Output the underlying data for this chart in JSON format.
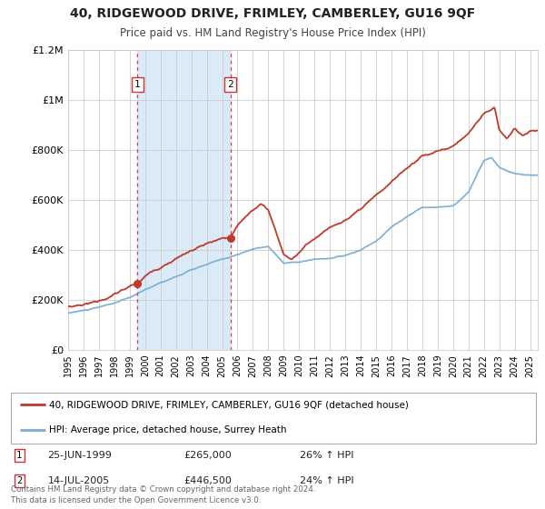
{
  "title": "40, RIDGEWOOD DRIVE, FRIMLEY, CAMBERLEY, GU16 9QF",
  "subtitle": "Price paid vs. HM Land Registry's House Price Index (HPI)",
  "sale1_date": 1999.49,
  "sale1_price": 265000,
  "sale1_label": "25-JUN-1999",
  "sale1_pct": "26%",
  "sale2_date": 2005.54,
  "sale2_price": 446500,
  "sale2_label": "14-JUL-2005",
  "sale2_pct": "24%",
  "hpi_line_color": "#7aaed6",
  "price_line_color": "#c0392b",
  "marker_color": "#c0392b",
  "shade_color": "#daeaf7",
  "vline_color": "#d94040",
  "legend_label_price": "40, RIDGEWOOD DRIVE, FRIMLEY, CAMBERLEY, GU16 9QF (detached house)",
  "legend_label_hpi": "HPI: Average price, detached house, Surrey Heath",
  "footer1": "Contains HM Land Registry data © Crown copyright and database right 2024.",
  "footer2": "This data is licensed under the Open Government Licence v3.0.",
  "ylim_max": 1200000,
  "yticks": [
    0,
    200000,
    400000,
    600000,
    800000,
    1000000,
    1200000
  ],
  "ytick_labels": [
    "£0",
    "£200K",
    "£400K",
    "£600K",
    "£800K",
    "£1M",
    "£1.2M"
  ],
  "xstart": 1995.0,
  "xend": 2025.5
}
